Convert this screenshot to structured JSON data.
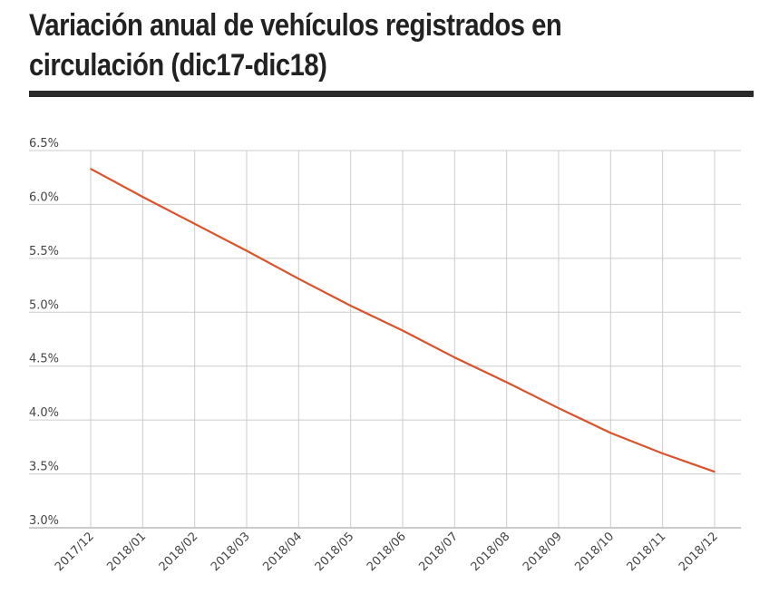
{
  "title": "Variación anual de vehículos registrados en circulación (dic17-dic18)",
  "chart_data": {
    "type": "line",
    "title": "Variación anual de vehículos registrados en circulación (dic17-dic18)",
    "xlabel": "",
    "ylabel": "",
    "categories": [
      "2017/12",
      "2018/01",
      "2018/02",
      "2018/03",
      "2018/04",
      "2018/05",
      "2018/06",
      "2018/07",
      "2018/08",
      "2018/09",
      "2018/10",
      "2018/11",
      "2018/12"
    ],
    "y_tick_labels": [
      "3.0%",
      "3.5%",
      "4.0%",
      "4.5%",
      "5.0%",
      "5.5%",
      "6.0%",
      "6.5%"
    ],
    "y_ticks": [
      3.0,
      3.5,
      4.0,
      4.5,
      5.0,
      5.5,
      6.0,
      6.5
    ],
    "ylim": [
      3.0,
      6.5
    ],
    "grid": true,
    "legend": "none",
    "series": [
      {
        "values": [
          6.33,
          6.07,
          5.82,
          5.57,
          5.31,
          5.06,
          4.83,
          4.58,
          4.35,
          4.11,
          3.88,
          3.69,
          3.52
        ],
        "color": "#d9532c"
      }
    ],
    "colors": {
      "line": "#d9532c",
      "grid": "#cccccc",
      "axis": "#999999",
      "title": "#222222",
      "rule": "#2b2b2b",
      "tick_text": "#444444"
    }
  }
}
